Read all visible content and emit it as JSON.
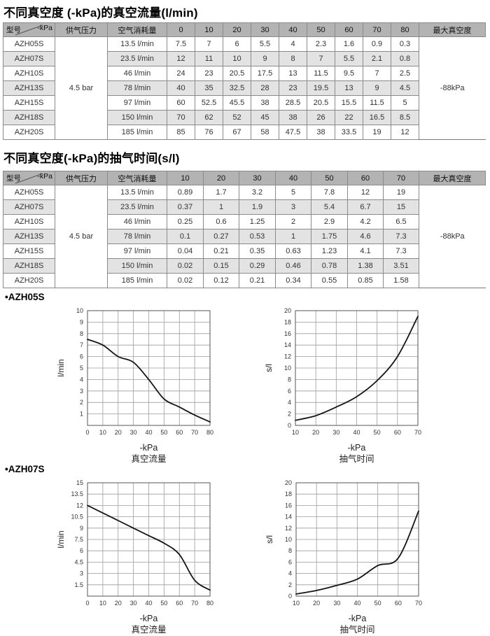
{
  "titles": {
    "flow": "不同真空度 (-kPa)的真空流量(l/min)",
    "time": "不同真空度(-kPa)的抽气时间(s/l)"
  },
  "labels": {
    "model": "型号",
    "kpa": "-kPa",
    "supply": "供气压力",
    "consumption": "空气消耗量",
    "max_vacuum": "最大真空度"
  },
  "flow_table": {
    "columns": [
      "0",
      "10",
      "20",
      "30",
      "40",
      "50",
      "60",
      "70",
      "80"
    ],
    "supply_pressure": "4.5 bar",
    "max_vacuum": "-88kPa",
    "rows": [
      {
        "model": "AZH05S",
        "consumption": "13.5 l/min",
        "values": [
          "7.5",
          "7",
          "6",
          "5.5",
          "4",
          "2.3",
          "1.6",
          "0.9",
          "0.3"
        ]
      },
      {
        "model": "AZH07S",
        "consumption": "23.5 l/min",
        "values": [
          "12",
          "11",
          "10",
          "9",
          "8",
          "7",
          "5.5",
          "2.1",
          "0.8"
        ]
      },
      {
        "model": "AZH10S",
        "consumption": "46 l/min",
        "values": [
          "24",
          "23",
          "20.5",
          "17.5",
          "13",
          "11.5",
          "9.5",
          "7",
          "2.5"
        ]
      },
      {
        "model": "AZH13S",
        "consumption": "78 l/min",
        "values": [
          "40",
          "35",
          "32.5",
          "28",
          "23",
          "19.5",
          "13",
          "9",
          "4.5"
        ]
      },
      {
        "model": "AZH15S",
        "consumption": "97 l/min",
        "values": [
          "60",
          "52.5",
          "45.5",
          "38",
          "28.5",
          "20.5",
          "15.5",
          "11.5",
          "5"
        ]
      },
      {
        "model": "AZH18S",
        "consumption": "150 l/min",
        "values": [
          "70",
          "62",
          "52",
          "45",
          "38",
          "26",
          "22",
          "16.5",
          "8.5"
        ]
      },
      {
        "model": "AZH20S",
        "consumption": "185 l/min",
        "values": [
          "85",
          "76",
          "67",
          "58",
          "47.5",
          "38",
          "33.5",
          "19",
          "12"
        ]
      }
    ]
  },
  "time_table": {
    "columns": [
      "10",
      "20",
      "30",
      "40",
      "50",
      "60",
      "70"
    ],
    "supply_pressure": "4.5 bar",
    "max_vacuum": "-88kPa",
    "rows": [
      {
        "model": "AZH05S",
        "consumption": "13.5 l/min",
        "values": [
          "0.89",
          "1.7",
          "3.2",
          "5",
          "7.8",
          "12",
          "19"
        ]
      },
      {
        "model": "AZH07S",
        "consumption": "23.5 l/min",
        "values": [
          "0.37",
          "1",
          "1.9",
          "3",
          "5.4",
          "6.7",
          "15"
        ]
      },
      {
        "model": "AZH10S",
        "consumption": "46 l/min",
        "values": [
          "0.25",
          "0.6",
          "1.25",
          "2",
          "2.9",
          "4.2",
          "6.5"
        ]
      },
      {
        "model": "AZH13S",
        "consumption": "78 l/min",
        "values": [
          "0.1",
          "0.27",
          "0.53",
          "1",
          "1.75",
          "4.6",
          "7.3"
        ]
      },
      {
        "model": "AZH15S",
        "consumption": "97 l/min",
        "values": [
          "0.04",
          "0.21",
          "0.35",
          "0.63",
          "1.23",
          "4.1",
          "7.3"
        ]
      },
      {
        "model": "AZH18S",
        "consumption": "150 l/min",
        "values": [
          "0.02",
          "0.15",
          "0.29",
          "0.46",
          "0.78",
          "1.38",
          "3.51"
        ]
      },
      {
        "model": "AZH20S",
        "consumption": "185 l/min",
        "values": [
          "0.02",
          "0.12",
          "0.21",
          "0.34",
          "0.55",
          "0.85",
          "1.58"
        ]
      }
    ]
  },
  "sections": [
    {
      "label": "•AZH05S"
    },
    {
      "label": "•AZH07S"
    }
  ],
  "chart_data": [
    {
      "id": "azh05s-flow",
      "model": "AZH05S",
      "type": "line",
      "title": "真空流量",
      "xlabel": "-kPa",
      "ylabel": "l/min",
      "x": [
        0,
        10,
        20,
        30,
        40,
        50,
        60,
        70,
        80
      ],
      "y": [
        7.5,
        7,
        6,
        5.5,
        4,
        2.3,
        1.6,
        0.9,
        0.3
      ],
      "xlim": [
        0,
        80
      ],
      "ylim": [
        0,
        10
      ],
      "xticks": [
        0,
        10,
        20,
        30,
        40,
        50,
        60,
        70,
        80
      ],
      "yticks": [
        1,
        2,
        3,
        4,
        5,
        6,
        7,
        8,
        9,
        10
      ],
      "grid": true,
      "legend": "none"
    },
    {
      "id": "azh05s-time",
      "model": "AZH05S",
      "type": "line",
      "title": "抽气时间",
      "xlabel": "-kPa",
      "ylabel": "s/l",
      "x": [
        10,
        20,
        30,
        40,
        50,
        60,
        70
      ],
      "y": [
        0.89,
        1.7,
        3.2,
        5,
        7.8,
        12,
        19
      ],
      "xlim": [
        10,
        70
      ],
      "ylim": [
        0,
        20
      ],
      "xticks": [
        10,
        20,
        30,
        40,
        50,
        60,
        70
      ],
      "yticks": [
        0,
        2,
        4,
        6,
        8,
        10,
        12,
        14,
        16,
        18,
        20
      ],
      "grid": true,
      "legend": "none"
    },
    {
      "id": "azh07s-flow",
      "model": "AZH07S",
      "type": "line",
      "title": "真空流量",
      "xlabel": "-kPa",
      "ylabel": "l/min",
      "x": [
        0,
        10,
        20,
        30,
        40,
        50,
        60,
        70,
        80
      ],
      "y": [
        12,
        11,
        10,
        9,
        8,
        7,
        5.5,
        2.1,
        0.8
      ],
      "xlim": [
        0,
        80
      ],
      "ylim": [
        0,
        15
      ],
      "xticks": [
        0,
        10,
        20,
        30,
        40,
        50,
        60,
        70,
        80
      ],
      "yticks": [
        1.5,
        3,
        4.5,
        6,
        7.5,
        9,
        10.5,
        12,
        13.5,
        15
      ],
      "grid": true,
      "legend": "none"
    },
    {
      "id": "azh07s-time",
      "model": "AZH07S",
      "type": "line",
      "title": "抽气时间",
      "xlabel": "-kPa",
      "ylabel": "s/l",
      "x": [
        10,
        20,
        30,
        40,
        50,
        60,
        70
      ],
      "y": [
        0.37,
        1,
        1.9,
        3,
        5.4,
        6.7,
        15
      ],
      "xlim": [
        10,
        70
      ],
      "ylim": [
        0,
        20
      ],
      "xticks": [
        10,
        20,
        30,
        40,
        50,
        60,
        70
      ],
      "yticks": [
        0,
        2,
        4,
        6,
        8,
        10,
        12,
        14,
        16,
        18,
        20
      ],
      "grid": true,
      "legend": "none"
    }
  ]
}
